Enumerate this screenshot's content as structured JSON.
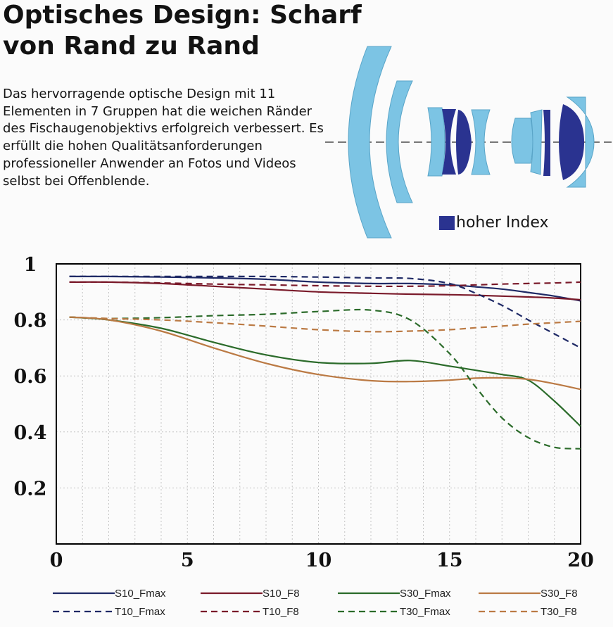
{
  "header": {
    "title_line1": "Optisches Design: Scharf",
    "title_line2": "von Rand zu Rand",
    "description": "Das hervorragende optische Design mit 11 Elementen in 7 Gruppen hat die weichen Ränder des Fischaugenobjektivs erfolgreich verbessert. Es erfüllt die hohen Qualitätsanforderungen professioneller Anwender an Fotos und Videos selbst bei Offenblende."
  },
  "lens_diagram": {
    "legend_label": "hoher Index",
    "colors": {
      "low_index": "#7cc4e4",
      "high_index": "#2a3390",
      "axis": "#777777"
    }
  },
  "chart_data": {
    "type": "line",
    "title": "",
    "xlabel": "",
    "ylabel": "",
    "xlim": [
      0,
      20
    ],
    "ylim": [
      0,
      1
    ],
    "x_ticks": [
      "0",
      "5",
      "10",
      "15",
      "20"
    ],
    "y_ticks": [
      "0.2",
      "0.4",
      "0.6",
      "0.8",
      "1"
    ],
    "grid": true,
    "legend_position": "bottom",
    "x": [
      0.5,
      2,
      4,
      6,
      8,
      10,
      12,
      13.5,
      15,
      16,
      17,
      18,
      19,
      20
    ],
    "series": [
      {
        "name": "S10_Fmax",
        "color": "#1f2a66",
        "dash": false,
        "values": [
          0.955,
          0.955,
          0.953,
          0.95,
          0.945,
          0.935,
          0.93,
          0.93,
          0.925,
          0.918,
          0.91,
          0.898,
          0.885,
          0.868
        ]
      },
      {
        "name": "S10_F8",
        "color": "#7a1a2a",
        "dash": false,
        "values": [
          0.935,
          0.935,
          0.93,
          0.92,
          0.91,
          0.9,
          0.895,
          0.892,
          0.89,
          0.888,
          0.885,
          0.882,
          0.878,
          0.872
        ]
      },
      {
        "name": "S30_Fmax",
        "color": "#2b6b2a",
        "dash": false,
        "values": [
          0.81,
          0.8,
          0.77,
          0.72,
          0.675,
          0.648,
          0.645,
          0.655,
          0.635,
          0.62,
          0.605,
          0.585,
          0.51,
          0.42
        ]
      },
      {
        "name": "S30_F8",
        "color": "#bb7a44",
        "dash": false,
        "values": [
          0.81,
          0.8,
          0.76,
          0.7,
          0.645,
          0.605,
          0.583,
          0.58,
          0.585,
          0.592,
          0.593,
          0.588,
          0.572,
          0.552
        ]
      },
      {
        "name": "T10_Fmax",
        "color": "#1f2a66",
        "dash": true,
        "values": [
          0.955,
          0.955,
          0.955,
          0.955,
          0.955,
          0.953,
          0.95,
          0.948,
          0.93,
          0.895,
          0.852,
          0.8,
          0.75,
          0.7
        ]
      },
      {
        "name": "T10_F8",
        "color": "#7a1a2a",
        "dash": true,
        "values": [
          0.935,
          0.935,
          0.932,
          0.928,
          0.925,
          0.922,
          0.92,
          0.92,
          0.922,
          0.925,
          0.928,
          0.93,
          0.932,
          0.935
        ]
      },
      {
        "name": "T30_Fmax",
        "color": "#2b6b2a",
        "dash": true,
        "values": [
          0.81,
          0.805,
          0.808,
          0.815,
          0.82,
          0.83,
          0.835,
          0.8,
          0.68,
          0.56,
          0.45,
          0.38,
          0.345,
          0.34
        ]
      },
      {
        "name": "T30_F8",
        "color": "#bb7a44",
        "dash": true,
        "values": [
          0.81,
          0.805,
          0.8,
          0.79,
          0.778,
          0.765,
          0.758,
          0.76,
          0.765,
          0.772,
          0.778,
          0.785,
          0.79,
          0.795
        ]
      }
    ]
  }
}
